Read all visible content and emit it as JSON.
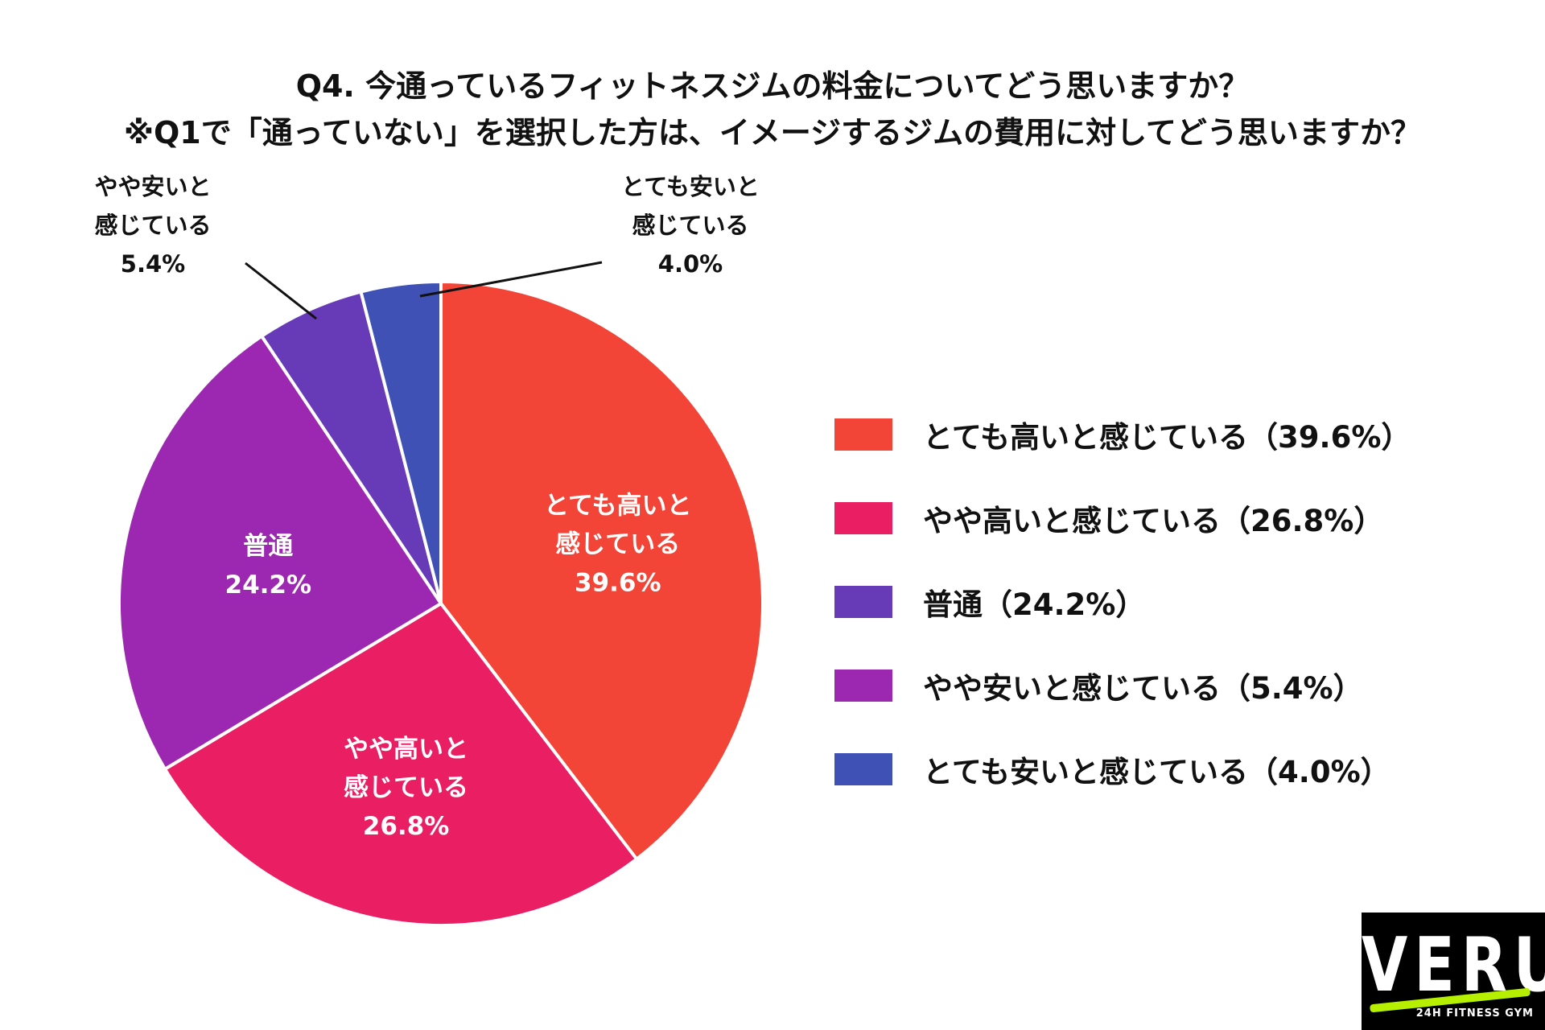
{
  "title": {
    "line1": "Q4. 今通っているフィットネスジムの料金についてどう思いますか？",
    "line2": "※Q1で「通っていない」を選択した方は、イメージするジムの費用に対してどう思いますか？"
  },
  "chart_data": {
    "type": "pie",
    "start_angle_deg": 0,
    "direction": "clockwise",
    "slices": [
      {
        "name": "とても高いと感じている",
        "value": 39.6,
        "color": "#f24437",
        "inside_label": [
          "とても高いと",
          "感じている",
          "39.6%"
        ],
        "legend": "とても高いと感じている（39.6%）"
      },
      {
        "name": "やや高いと感じている",
        "value": 26.8,
        "color": "#e91e63",
        "inside_label": [
          "やや高いと",
          "感じている",
          "26.8%"
        ],
        "legend": "やや高いと感じている（26.8%）"
      },
      {
        "name": "普通",
        "value": 24.2,
        "color": "#9c27b0",
        "inside_label": [
          "普通",
          "24.2%"
        ],
        "legend": "普通（24.2%）"
      },
      {
        "name": "やや安いと感じている",
        "value": 5.4,
        "color": "#673ab7",
        "outside_label": [
          "やや安いと",
          "感じている",
          "5.4%"
        ],
        "legend": "やや安いと感じている（5.4%）"
      },
      {
        "name": "とても安いと感じている",
        "value": 4.0,
        "color": "#3f51b5",
        "outside_label": [
          "とても安いと",
          "感じている",
          "4.0%"
        ],
        "legend": "とても安いと感じている（4.0%）"
      }
    ],
    "legend_position": "right",
    "legend_colors": [
      "#f24437",
      "#e91e63",
      "#673ab7",
      "#9c27b0",
      "#3f51b5"
    ]
  },
  "logo": {
    "word": "VERUS",
    "tagline": "24H FITNESS GYM"
  }
}
